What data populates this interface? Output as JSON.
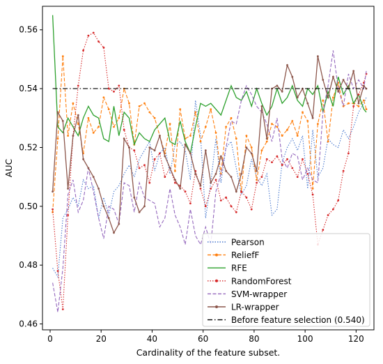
{
  "chart_data": {
    "type": "line",
    "title": "",
    "xlabel": "Cardinality of the feature subset.",
    "ylabel": "AUC",
    "xlim": [
      -3,
      127
    ],
    "ylim": [
      0.458,
      0.568
    ],
    "x_ticks": [
      0,
      20,
      40,
      60,
      80,
      100,
      120
    ],
    "y_ticks": [
      0.46,
      0.48,
      0.5,
      0.52,
      0.54,
      0.56
    ],
    "y_tick_labels": [
      "0.46",
      "0.48",
      "0.50",
      "0.52",
      "0.54",
      "0.56"
    ],
    "grid": false,
    "legend": "lower-right",
    "x": [
      1,
      3,
      5,
      7,
      9,
      11,
      13,
      15,
      17,
      19,
      21,
      23,
      25,
      27,
      29,
      31,
      33,
      35,
      37,
      39,
      41,
      43,
      45,
      47,
      49,
      51,
      53,
      55,
      57,
      59,
      61,
      63,
      65,
      67,
      69,
      71,
      73,
      75,
      77,
      79,
      81,
      83,
      85,
      87,
      89,
      91,
      93,
      95,
      97,
      99,
      101,
      103,
      105,
      107,
      109,
      111,
      113,
      115,
      117,
      119,
      121,
      123,
      124
    ],
    "series": [
      {
        "name": "Pearson",
        "color": "#4878cf",
        "linestyle": "dotted",
        "marker": "none",
        "values": [
          0.479,
          0.476,
          0.496,
          0.499,
          0.503,
          0.5,
          0.509,
          0.506,
          0.507,
          0.496,
          0.503,
          0.497,
          0.505,
          0.507,
          0.511,
          0.514,
          0.51,
          0.516,
          0.519,
          0.522,
          0.512,
          0.518,
          0.52,
          0.511,
          0.521,
          0.522,
          0.519,
          0.509,
          0.536,
          0.524,
          0.496,
          0.508,
          0.523,
          0.508,
          0.52,
          0.522,
          0.513,
          0.504,
          0.507,
          0.516,
          0.51,
          0.507,
          0.511,
          0.497,
          0.499,
          0.515,
          0.52,
          0.523,
          0.519,
          0.524,
          0.506,
          0.526,
          0.51,
          0.513,
          0.523,
          0.521,
          0.52,
          0.526,
          0.523,
          0.527,
          0.532,
          0.535,
          0.537
        ]
      },
      {
        "name": "ReliefF",
        "color": "#ff7f0e",
        "linestyle": "dashed",
        "marker": "dot",
        "values": [
          0.498,
          0.523,
          0.551,
          0.524,
          0.535,
          0.528,
          0.518,
          0.53,
          0.525,
          0.527,
          0.537,
          0.533,
          0.527,
          0.53,
          0.54,
          0.535,
          0.521,
          0.534,
          0.535,
          0.532,
          0.53,
          0.524,
          0.518,
          0.528,
          0.512,
          0.533,
          0.523,
          0.524,
          0.532,
          0.522,
          0.527,
          0.533,
          0.525,
          0.511,
          0.527,
          0.53,
          0.523,
          0.505,
          0.524,
          0.52,
          0.509,
          0.519,
          0.522,
          0.528,
          0.527,
          0.524,
          0.526,
          0.529,
          0.524,
          0.532,
          0.529,
          0.506,
          0.528,
          0.536,
          0.522,
          0.537,
          0.542,
          0.534,
          0.535,
          0.535,
          0.534,
          0.536,
          0.533
        ]
      },
      {
        "name": "RFE",
        "color": "#2ca02c",
        "linestyle": "solid",
        "marker": "none",
        "values": [
          0.565,
          0.527,
          0.525,
          0.53,
          0.527,
          0.524,
          0.53,
          0.534,
          0.531,
          0.53,
          0.523,
          0.522,
          0.534,
          0.524,
          0.532,
          0.53,
          0.521,
          0.525,
          0.523,
          0.522,
          0.526,
          0.528,
          0.53,
          0.522,
          0.521,
          0.529,
          0.522,
          0.518,
          0.527,
          0.535,
          0.534,
          0.535,
          0.533,
          0.531,
          0.536,
          0.541,
          0.537,
          0.536,
          0.539,
          0.534,
          0.54,
          0.535,
          0.531,
          0.534,
          0.54,
          0.535,
          0.537,
          0.541,
          0.536,
          0.534,
          0.54,
          0.538,
          0.541,
          0.532,
          0.539,
          0.534,
          0.544,
          0.538,
          0.541,
          0.535,
          0.538,
          0.533,
          0.532
        ]
      },
      {
        "name": "RandomForest",
        "color": "#d62728",
        "linestyle": "dotted",
        "marker": "dot",
        "values": [
          0.499,
          0.478,
          0.465,
          0.497,
          0.524,
          0.541,
          0.553,
          0.558,
          0.559,
          0.556,
          0.554,
          0.54,
          0.539,
          0.541,
          0.526,
          0.52,
          0.519,
          0.513,
          0.514,
          0.508,
          0.516,
          0.518,
          0.51,
          0.513,
          0.508,
          0.507,
          0.505,
          0.501,
          0.512,
          0.506,
          0.5,
          0.506,
          0.509,
          0.502,
          0.503,
          0.5,
          0.498,
          0.505,
          0.503,
          0.499,
          0.508,
          0.51,
          0.516,
          0.515,
          0.517,
          0.514,
          0.516,
          0.513,
          0.51,
          0.516,
          0.511,
          0.504,
          0.487,
          0.492,
          0.497,
          0.499,
          0.502,
          0.512,
          0.518,
          0.534,
          0.538,
          0.542,
          0.545
        ]
      },
      {
        "name": "SVM-wrapper",
        "color": "#9467bd",
        "linestyle": "dashed",
        "marker": "none",
        "values": [
          0.474,
          0.464,
          0.479,
          0.504,
          0.509,
          0.498,
          0.502,
          0.513,
          0.505,
          0.496,
          0.489,
          0.5,
          0.499,
          0.494,
          0.508,
          0.507,
          0.498,
          0.508,
          0.503,
          0.502,
          0.501,
          0.493,
          0.496,
          0.506,
          0.497,
          0.493,
          0.487,
          0.499,
          0.49,
          0.487,
          0.493,
          0.487,
          0.505,
          0.511,
          0.52,
          0.529,
          0.528,
          0.536,
          0.541,
          0.538,
          0.534,
          0.532,
          0.528,
          0.522,
          0.53,
          0.516,
          0.513,
          0.518,
          0.517,
          0.509,
          0.513,
          0.509,
          0.508,
          0.532,
          0.541,
          0.553,
          0.54,
          0.534,
          0.545,
          0.54,
          0.543,
          0.54,
          0.546
        ]
      },
      {
        "name": "LR-wrapper",
        "color": "#8c564b",
        "linestyle": "solid",
        "marker": "dot",
        "values": [
          0.505,
          0.532,
          0.529,
          0.506,
          0.524,
          0.531,
          0.516,
          0.513,
          0.51,
          0.506,
          0.5,
          0.496,
          0.491,
          0.494,
          0.523,
          0.52,
          0.503,
          0.498,
          0.5,
          0.52,
          0.519,
          0.524,
          0.517,
          0.513,
          0.509,
          0.506,
          0.521,
          0.518,
          0.511,
          0.507,
          0.519,
          0.508,
          0.511,
          0.517,
          0.512,
          0.51,
          0.505,
          0.511,
          0.52,
          0.518,
          0.512,
          0.534,
          0.523,
          0.54,
          0.541,
          0.539,
          0.548,
          0.544,
          0.537,
          0.54,
          0.535,
          0.53,
          0.551,
          0.543,
          0.537,
          0.544,
          0.539,
          0.543,
          0.54,
          0.546,
          0.535,
          0.541,
          0.54
        ]
      },
      {
        "name": "Before feature selection (0.540)",
        "color": "#000000",
        "linestyle": "dashdot",
        "marker": "none",
        "constant": 0.54
      }
    ]
  }
}
